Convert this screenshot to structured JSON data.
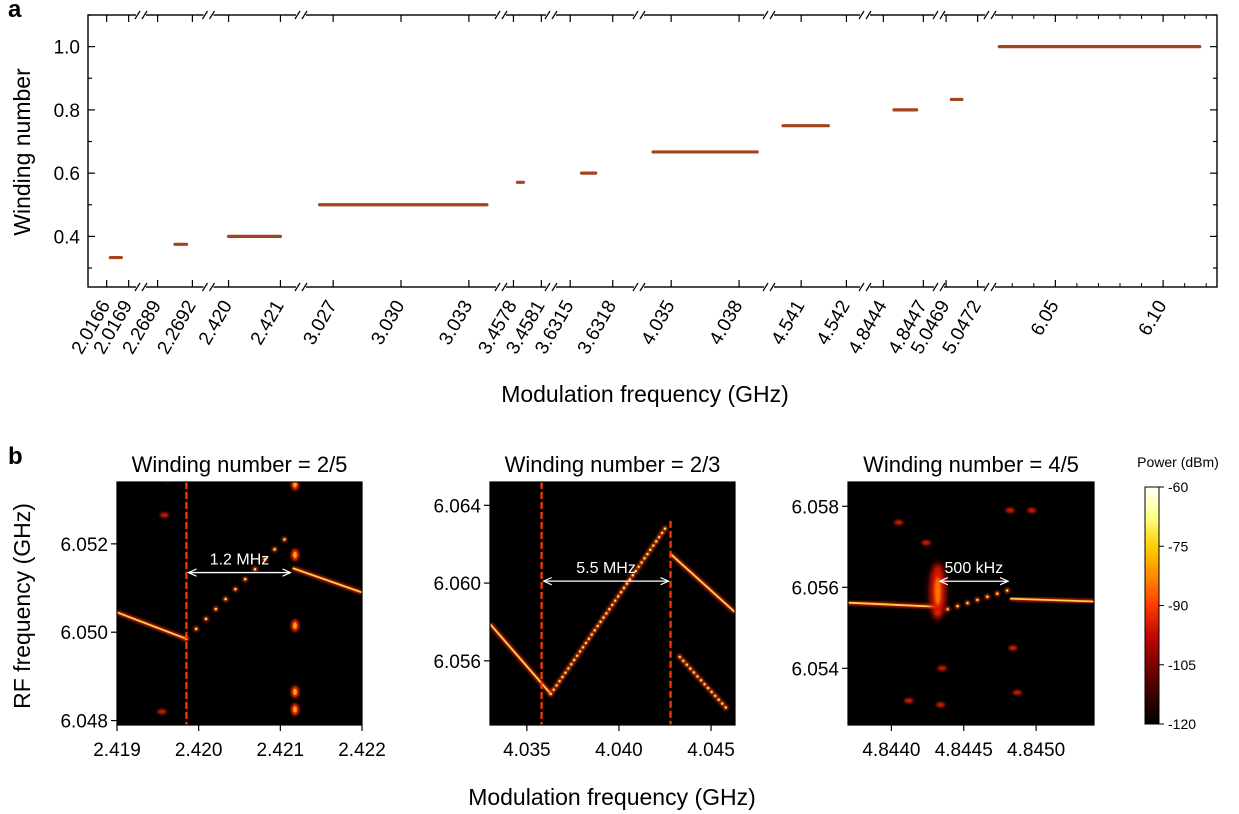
{
  "panel_a": {
    "letter": "a",
    "ylabel": "Winding number",
    "xlabel": "Modulation frequency (GHz)"
  },
  "panel_b": {
    "letter": "b",
    "ylabel": "RF frequency (GHz)",
    "xlabel": "Modulation frequency (GHz)"
  },
  "colorbar": {
    "title": "Power (dBm)",
    "range": [
      -120,
      -60
    ],
    "ticks": [
      "-60",
      "-75",
      "-90",
      "-105",
      "-120"
    ],
    "colormap": [
      "#000000",
      "#3a0000",
      "#7a0000",
      "#c20a00",
      "#ff3a00",
      "#ff8c00",
      "#ffd000",
      "#ffff8a",
      "#ffffff"
    ]
  },
  "accent_color": "#a4441c",
  "chart_data": [
    {
      "type": "line",
      "title": "",
      "xlabel": "Modulation frequency (GHz)",
      "ylabel": "Winding number",
      "ylim": [
        0.24,
        1.1
      ],
      "yticks": [
        "0.4",
        "0.6",
        "0.8",
        "1.0"
      ],
      "broken_x_axis": true,
      "x_tick_labels": [
        "2.0166",
        "2.0169",
        "2.2689",
        "2.2692",
        "2.420",
        "2.421",
        "3.027",
        "3.030",
        "3.033",
        "3.4578",
        "3.4581",
        "3.6315",
        "3.6318",
        "4.035",
        "4.038",
        "4.541",
        "4.542",
        "4.8444",
        "4.8447",
        "5.0469",
        "5.0472",
        "6.05",
        "6.10"
      ],
      "series": [
        {
          "segments": [
            {
              "x_start": 2.01665,
              "x_end": 2.0168,
              "y": 0.333
            },
            {
              "x_start": 2.26905,
              "x_end": 2.26915,
              "y": 0.375
            },
            {
              "x_start": 2.42,
              "x_end": 2.421,
              "y": 0.4
            },
            {
              "x_start": 3.0264,
              "x_end": 3.0338,
              "y": 0.5
            },
            {
              "x_start": 3.45785,
              "x_end": 3.4579,
              "y": 0.571
            },
            {
              "x_start": 3.63158,
              "x_end": 3.63168,
              "y": 0.6
            },
            {
              "x_start": 4.0342,
              "x_end": 4.0388,
              "y": 0.667
            },
            {
              "x_start": 4.5406,
              "x_end": 4.5416,
              "y": 0.75
            },
            {
              "x_start": 4.84448,
              "x_end": 4.84465,
              "y": 0.8
            },
            {
              "x_start": 5.04695,
              "x_end": 5.04705,
              "y": 0.833
            },
            {
              "x_start": 6.024,
              "x_end": 6.117,
              "y": 1.0
            }
          ]
        }
      ]
    },
    {
      "type": "heatmap",
      "title": "Winding number = 2/5",
      "xlabel": "Modulation frequency (GHz)",
      "ylabel": "RF frequency (GHz)",
      "xlim": [
        2.419,
        2.422
      ],
      "ylim": [
        6.0479,
        6.0534
      ],
      "xticks": [
        "2.419",
        "2.420",
        "2.421",
        "2.422"
      ],
      "yticks": [
        "6.048",
        "6.050",
        "6.052"
      ],
      "annotation": "1.2 MHz",
      "features": [
        {
          "kind": "line",
          "from": [
            2.419,
            6.05045
          ],
          "to": [
            2.41985,
            6.04985
          ]
        },
        {
          "kind": "dots",
          "from": [
            2.41985,
            6.04985
          ],
          "to": [
            2.42105,
            6.0521
          ],
          "count": 11
        },
        {
          "kind": "line",
          "from": [
            2.42115,
            6.05145
          ],
          "to": [
            2.422,
            6.0509
          ]
        },
        {
          "kind": "vertical",
          "x": 2.41985,
          "from": 6.0479,
          "to": 6.0534
        },
        {
          "kind": "vertical_spots",
          "x": 2.42118,
          "values": [
            6.05335,
            6.05175,
            6.05015,
            6.04865,
            6.04825
          ]
        },
        {
          "kind": "spots",
          "points": [
            [
              2.41958,
              6.05265
            ],
            [
              2.41962,
              6.05345
            ],
            [
              2.41955,
              6.0482
            ]
          ]
        }
      ]
    },
    {
      "type": "heatmap",
      "title": "Winding number = 2/3",
      "xlabel": "Modulation frequency (GHz)",
      "ylabel": "RF frequency (GHz)",
      "xlim": [
        4.033,
        4.0463
      ],
      "ylim": [
        6.0527,
        6.0652
      ],
      "xticks": [
        "4.035",
        "4.040",
        "4.045"
      ],
      "yticks": [
        "6.056",
        "6.060",
        "6.064"
      ],
      "annotation": "5.5 MHz",
      "features": [
        {
          "kind": "line",
          "from": [
            4.033,
            6.0579
          ],
          "to": [
            4.0363,
            6.0543
          ]
        },
        {
          "kind": "dots",
          "from": [
            4.0363,
            6.0543
          ],
          "to": [
            4.0425,
            6.0628
          ],
          "count": 40
        },
        {
          "kind": "line",
          "from": [
            4.0428,
            6.0615
          ],
          "to": [
            4.0463,
            6.0585
          ]
        },
        {
          "kind": "vertical",
          "x": 4.0358,
          "from": 6.0527,
          "to": 6.0652
        },
        {
          "kind": "vertical",
          "x": 4.0428,
          "from": 6.0527,
          "to": 6.0632
        },
        {
          "kind": "dots",
          "from": [
            4.0433,
            6.0562
          ],
          "to": [
            4.0458,
            6.0536
          ],
          "count": 14
        }
      ]
    },
    {
      "type": "heatmap",
      "title": "Winding number = 4/5",
      "xlabel": "Modulation frequency (GHz)",
      "ylabel": "RF frequency (GHz)",
      "xlim": [
        4.8437,
        4.8454
      ],
      "ylim": [
        6.0526,
        6.0586
      ],
      "xticks": [
        "4.8440",
        "4.8445",
        "4.8450"
      ],
      "yticks": [
        "6.054",
        "6.056",
        "6.058"
      ],
      "annotation": "500 kHz",
      "features": [
        {
          "kind": "line",
          "from": [
            4.8437,
            6.05562
          ],
          "to": [
            4.84432,
            6.05552
          ]
        },
        {
          "kind": "dots",
          "from": [
            4.84432,
            6.05538
          ],
          "to": [
            4.8448,
            6.05592
          ],
          "count": 8
        },
        {
          "kind": "line",
          "from": [
            4.84482,
            6.05572
          ],
          "to": [
            4.8454,
            6.05565
          ]
        },
        {
          "kind": "blob",
          "at": [
            4.84432,
            6.0559
          ]
        },
        {
          "kind": "spots",
          "points": [
            [
              4.84424,
              6.0571
            ],
            [
              4.84435,
              6.054
            ],
            [
              4.84434,
              6.0531
            ],
            [
              4.84482,
              6.0579
            ],
            [
              4.84484,
              6.0545
            ],
            [
              4.84487,
              6.0534
            ],
            [
              4.84405,
              6.0576
            ],
            [
              4.84412,
              6.0532
            ],
            [
              4.84497,
              6.0579
            ]
          ]
        }
      ]
    }
  ]
}
